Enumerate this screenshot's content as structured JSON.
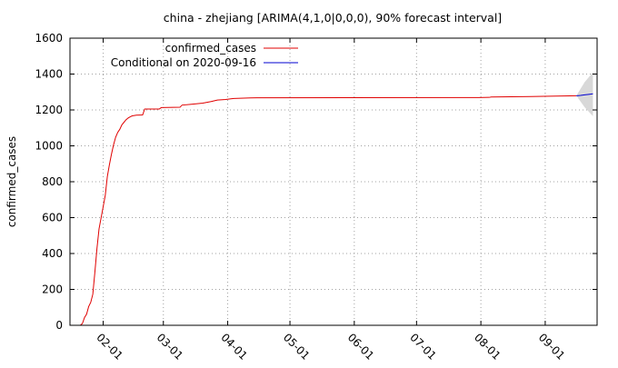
{
  "chart_data": {
    "type": "line",
    "title": "china - zhejiang [ARIMA(4,1,0|0,0,0), 90% forecast interval]",
    "xlabel": "",
    "ylabel": "confirmed_cases",
    "ylim": [
      0,
      1600
    ],
    "xlim": [
      "2020-01-16",
      "2020-09-26"
    ],
    "yticks": [
      "0",
      "200",
      "400",
      "600",
      "800",
      "1000",
      "1200",
      "1400",
      "1600"
    ],
    "xticks": [
      {
        "label": "02-01",
        "date": "2020-02-01"
      },
      {
        "label": "03-01",
        "date": "2020-03-01"
      },
      {
        "label": "04-01",
        "date": "2020-04-01"
      },
      {
        "label": "05-01",
        "date": "2020-05-01"
      },
      {
        "label": "06-01",
        "date": "2020-06-01"
      },
      {
        "label": "07-01",
        "date": "2020-07-01"
      },
      {
        "label": "08-01",
        "date": "2020-08-01"
      },
      {
        "label": "09-01",
        "date": "2020-09-01"
      }
    ],
    "grid": true,
    "legend_position": "top-left",
    "series": [
      {
        "name": "confirmed_cases",
        "color": "#e00000",
        "points": [
          [
            "2020-01-21",
            0
          ],
          [
            "2020-01-22",
            10
          ],
          [
            "2020-01-23",
            43
          ],
          [
            "2020-01-24",
            62
          ],
          [
            "2020-01-25",
            104
          ],
          [
            "2020-01-26",
            128
          ],
          [
            "2020-01-27",
            173
          ],
          [
            "2020-01-28",
            296
          ],
          [
            "2020-01-29",
            428
          ],
          [
            "2020-01-30",
            537
          ],
          [
            "2020-01-31",
            599
          ],
          [
            "2020-02-01",
            661
          ],
          [
            "2020-02-02",
            724
          ],
          [
            "2020-02-03",
            829
          ],
          [
            "2020-02-04",
            895
          ],
          [
            "2020-02-05",
            954
          ],
          [
            "2020-02-06",
            1006
          ],
          [
            "2020-02-07",
            1048
          ],
          [
            "2020-02-08",
            1075
          ],
          [
            "2020-02-09",
            1092
          ],
          [
            "2020-02-10",
            1117
          ],
          [
            "2020-02-11",
            1131
          ],
          [
            "2020-02-12",
            1145
          ],
          [
            "2020-02-13",
            1155
          ],
          [
            "2020-02-14",
            1162
          ],
          [
            "2020-02-15",
            1167
          ],
          [
            "2020-02-17",
            1171
          ],
          [
            "2020-02-20",
            1172
          ],
          [
            "2020-02-21",
            1205
          ],
          [
            "2020-02-28",
            1205
          ],
          [
            "2020-02-29",
            1213
          ],
          [
            "2020-03-09",
            1215
          ],
          [
            "2020-03-10",
            1227
          ],
          [
            "2020-03-14",
            1231
          ],
          [
            "2020-03-20",
            1238
          ],
          [
            "2020-03-24",
            1247
          ],
          [
            "2020-03-27",
            1255
          ],
          [
            "2020-03-31",
            1258
          ],
          [
            "2020-04-04",
            1264
          ],
          [
            "2020-04-12",
            1267
          ],
          [
            "2020-04-15",
            1268
          ],
          [
            "2020-04-16",
            1268
          ],
          [
            "2020-07-31",
            1269
          ],
          [
            "2020-08-05",
            1270
          ],
          [
            "2020-08-06",
            1272
          ],
          [
            "2020-08-25",
            1275
          ],
          [
            "2020-09-16",
            1279
          ]
        ]
      },
      {
        "name": "Conditional on 2020-09-16",
        "color": "#0000d0",
        "points": [
          [
            "2020-09-16",
            1279
          ],
          [
            "2020-09-18",
            1281
          ],
          [
            "2020-09-20",
            1284
          ],
          [
            "2020-09-22",
            1287
          ],
          [
            "2020-09-24",
            1290
          ]
        ]
      }
    ],
    "forecast_interval": {
      "color": "#d8d8d8",
      "points": [
        [
          "2020-09-16",
          1279,
          1279
        ],
        [
          "2020-09-20",
          1215,
          1355
        ],
        [
          "2020-09-24",
          1165,
          1410
        ]
      ]
    }
  }
}
